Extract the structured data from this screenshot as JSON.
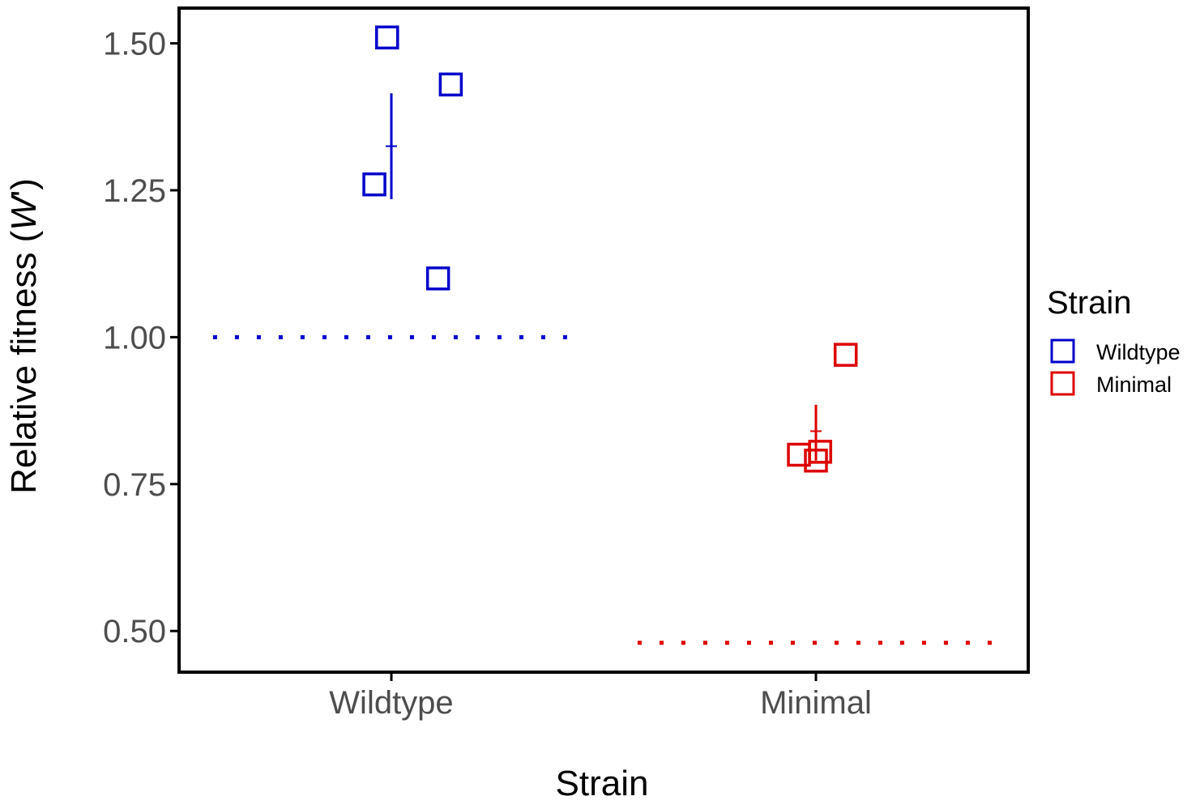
{
  "chart_data": {
    "type": "scatter",
    "xlabel": "Strain",
    "ylabel": {
      "text": "Relative fitness (",
      "italic": "W",
      "suffix": "')"
    },
    "ylim": [
      0.43,
      1.56
    ],
    "y_ticks": [
      0.5,
      0.75,
      1.0,
      1.25,
      1.5
    ],
    "y_tick_labels": [
      "0.50",
      "0.75",
      "1.00",
      "1.25",
      "1.50"
    ],
    "categories": [
      "Wildtype",
      "Minimal"
    ],
    "grid": false,
    "legend": {
      "title": "Strain",
      "placement": "right",
      "entries": [
        "Wildtype",
        "Minimal"
      ]
    },
    "series": [
      {
        "name": "Wildtype",
        "color": "#0000cc",
        "marker": "open-square",
        "points": [
          {
            "jitter": -0.01,
            "y": 1.51
          },
          {
            "jitter": 0.14,
            "y": 1.43
          },
          {
            "jitter": -0.04,
            "y": 1.26
          },
          {
            "jitter": 0.11,
            "y": 1.1
          }
        ],
        "mean": 1.325,
        "error_low": 1.235,
        "error_high": 1.415,
        "reference_line": 1.0
      },
      {
        "name": "Minimal",
        "color": "#dd0000",
        "marker": "open-square",
        "points": [
          {
            "jitter": 0.07,
            "y": 0.97
          },
          {
            "jitter": -0.04,
            "y": 0.8
          },
          {
            "jitter": 0.0,
            "y": 0.79
          },
          {
            "jitter": 0.01,
            "y": 0.805
          }
        ],
        "mean": 0.84,
        "error_low": 0.79,
        "error_high": 0.885,
        "reference_line": 0.48
      }
    ]
  }
}
